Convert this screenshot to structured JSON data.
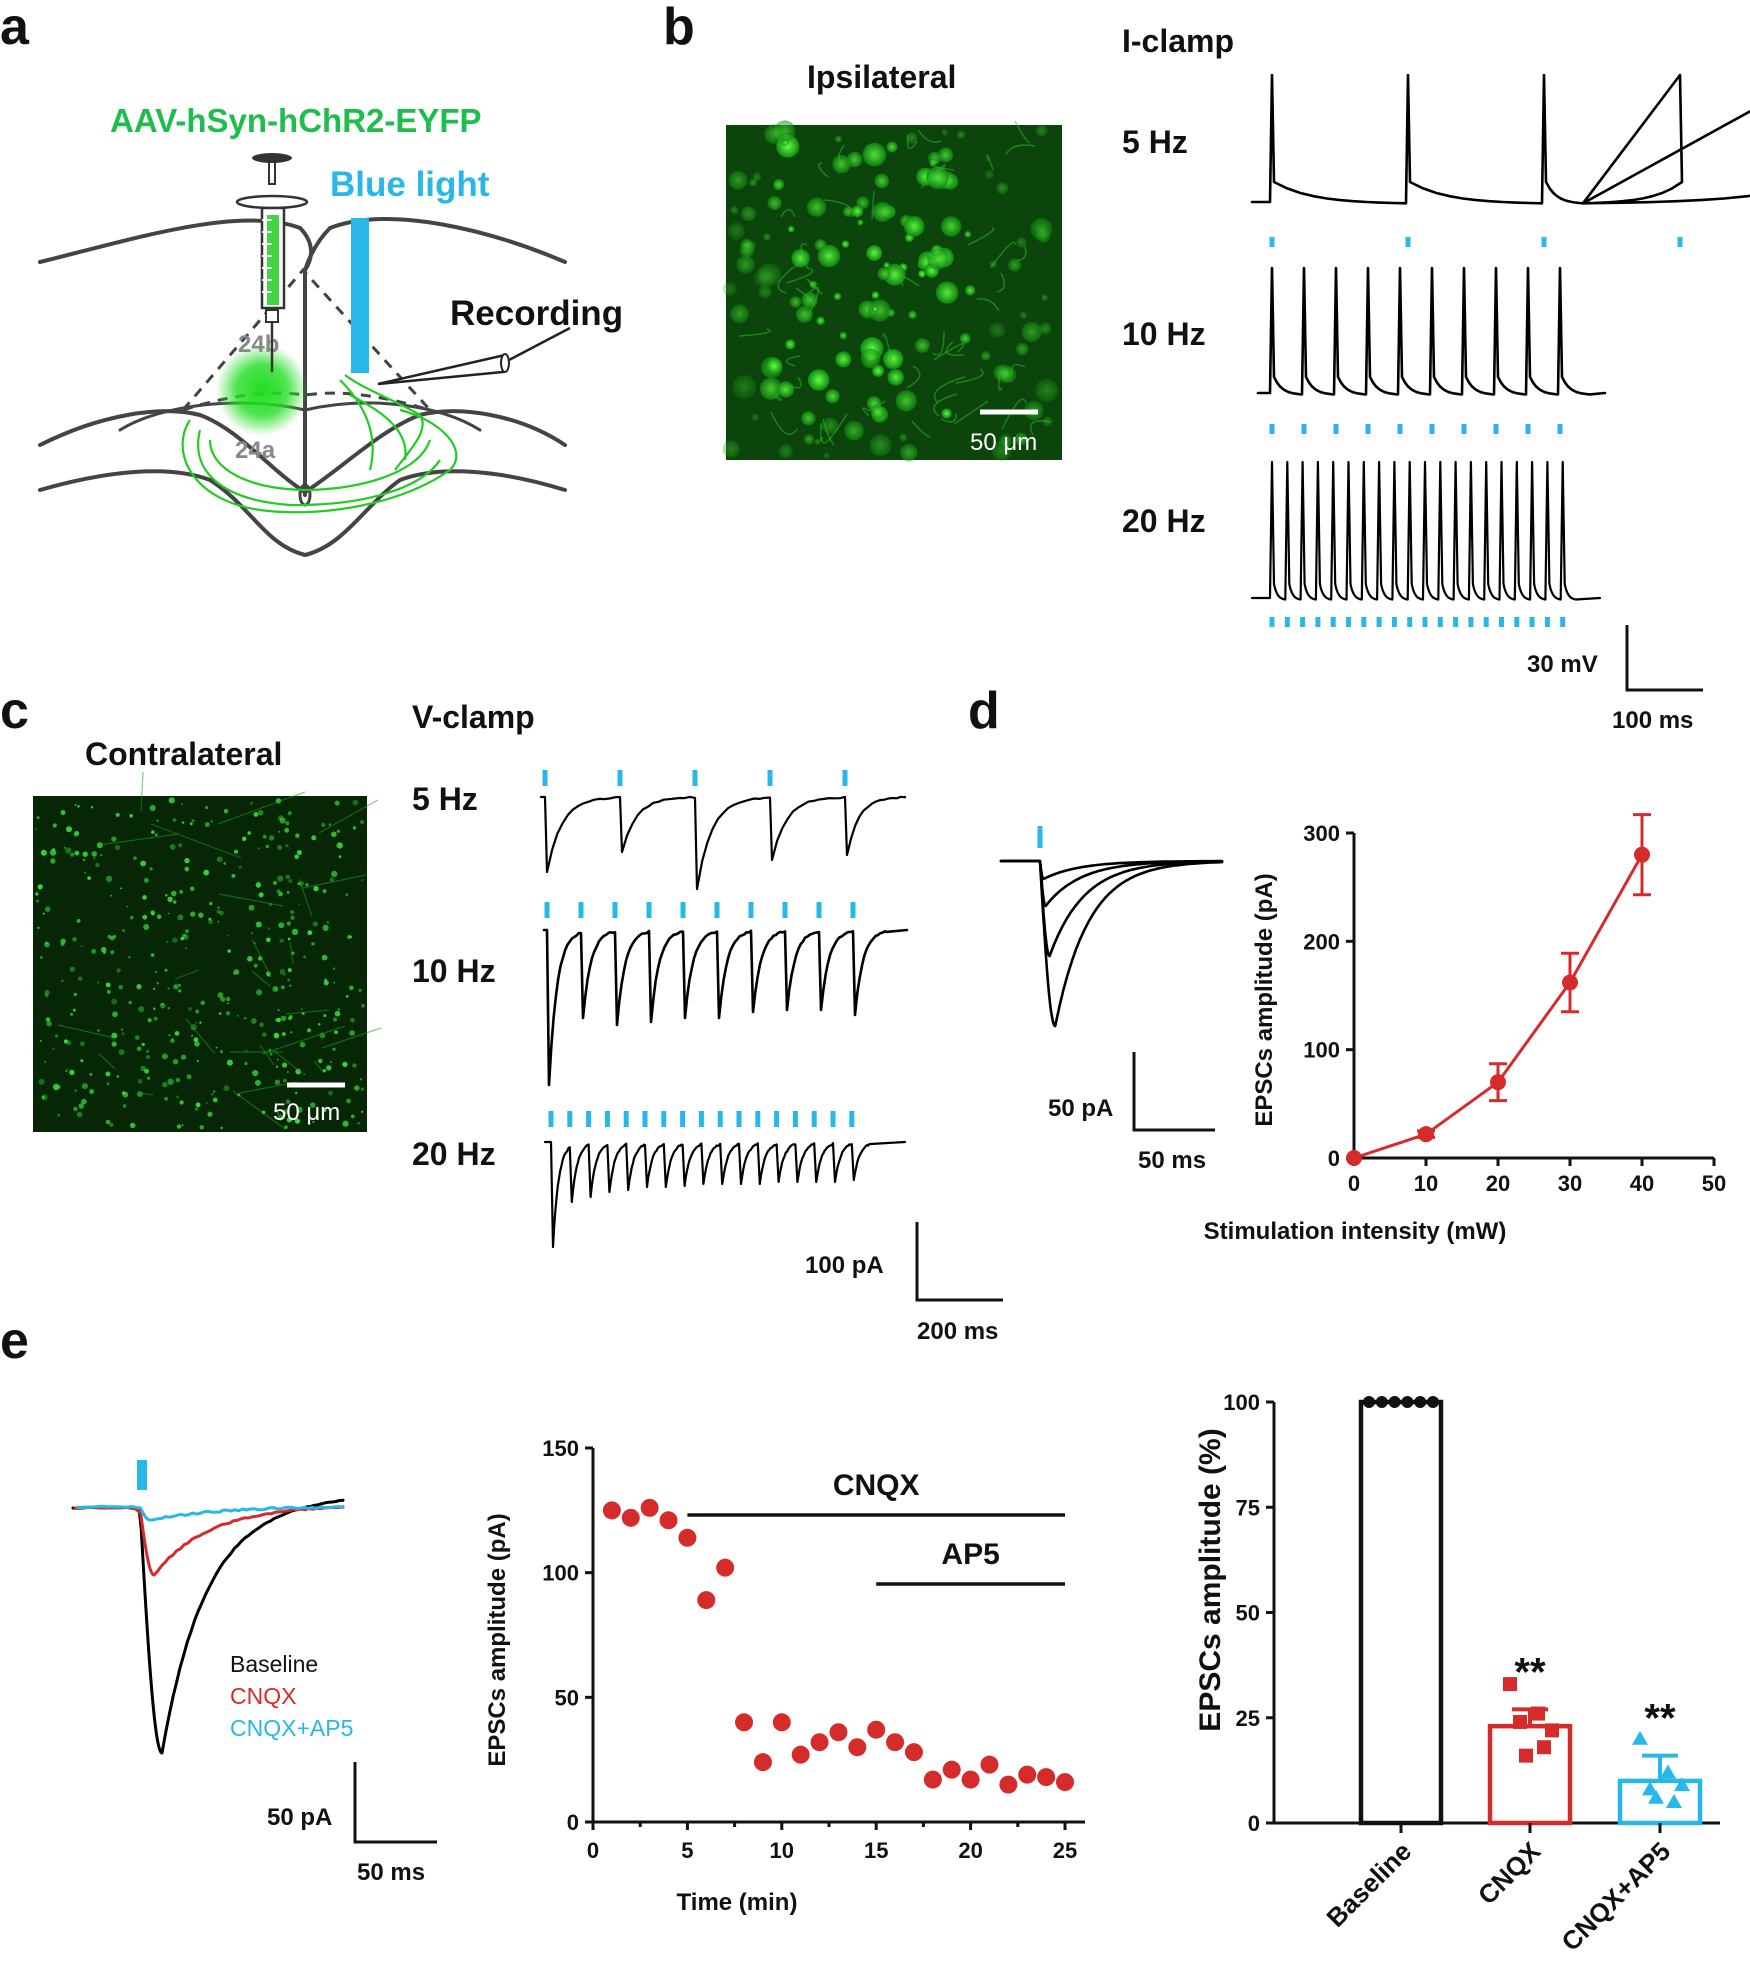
{
  "panels": {
    "a": {
      "letter": "a",
      "virus_label": "AAV-hSyn-hChR2-EYFP",
      "light_label": "Blue light",
      "recording_label": "Recording",
      "region_upper": "24b",
      "region_lower": "24a"
    },
    "b": {
      "letter": "b",
      "image_title": "Ipsilateral",
      "scale_bar": "50 μm",
      "mode": "I-clamp",
      "frequencies": [
        "5 Hz",
        "10 Hz",
        "20 Hz"
      ],
      "scale_v": "30 mV",
      "scale_t": "100 ms"
    },
    "c": {
      "letter": "c",
      "image_title": "Contralateral",
      "scale_bar": "50 μm",
      "mode": "V-clamp",
      "frequencies": [
        "5 Hz",
        "10 Hz",
        "20 Hz"
      ],
      "scale_i": "100 pA",
      "scale_t": "200 ms"
    },
    "d": {
      "letter": "d",
      "scale_i": "50 pA",
      "scale_t": "50 ms"
    },
    "e": {
      "letter": "e",
      "legend": [
        {
          "label": "Baseline",
          "color": "#111111"
        },
        {
          "label": "CNQX",
          "color": "#d62b2b"
        },
        {
          "label": "CNQX+AP5",
          "color": "#29b7e8"
        }
      ],
      "scale_i": "50 pA",
      "scale_t": "50 ms",
      "drug_bars": [
        "CNQX",
        "AP5"
      ],
      "significance": [
        "**",
        "**"
      ]
    }
  },
  "colors": {
    "light": "#29b7e8",
    "red": "#d62b2b",
    "green": "#22cc22"
  },
  "chart_data": [
    {
      "id": "d_chart",
      "type": "line",
      "xlabel": "Stimulation intensity (mW)",
      "ylabel": "EPSCs amplitude (pA)",
      "xlim": [
        0,
        50
      ],
      "ylim": [
        0,
        300
      ],
      "xticks": [
        0,
        10,
        20,
        30,
        40,
        50
      ],
      "yticks": [
        0,
        100,
        200,
        300
      ],
      "x": [
        0,
        10,
        20,
        30,
        40
      ],
      "y": [
        0,
        22,
        70,
        162,
        280
      ],
      "err": [
        0,
        3,
        17,
        27,
        37
      ],
      "color": "#d62b2b"
    },
    {
      "id": "e_time",
      "type": "scatter",
      "xlabel": "Time (min)",
      "ylabel": "EPSCs amplitude (pA)",
      "xlim": [
        0,
        25
      ],
      "ylim": [
        0,
        150
      ],
      "xticks": [
        0,
        5,
        10,
        15,
        20,
        25
      ],
      "yticks": [
        0,
        50,
        100,
        150
      ],
      "x": [
        1,
        2,
        3,
        4,
        5,
        6,
        7,
        8,
        9,
        10,
        11,
        12,
        13,
        14,
        15,
        16,
        17,
        18,
        19,
        20,
        21,
        22,
        23,
        24,
        25
      ],
      "y": [
        125,
        122,
        126,
        121,
        114,
        89,
        102,
        40,
        24,
        40,
        27,
        32,
        36,
        30,
        37,
        32,
        28,
        17,
        21,
        17,
        23,
        15,
        19,
        18,
        16
      ],
      "color": "#d62b2b",
      "annotations": [
        {
          "label": "CNQX",
          "from": 5,
          "to": 25
        },
        {
          "label": "AP5",
          "from": 15,
          "to": 25
        }
      ]
    },
    {
      "id": "e_bar",
      "type": "bar",
      "ylabel": "EPSCs amplitude (%)",
      "ylim": [
        0,
        100
      ],
      "yticks": [
        0,
        25,
        50,
        75,
        100
      ],
      "categories": [
        "Baseline",
        "CNQX",
        "CNQX+AP5"
      ],
      "values": [
        100,
        23,
        10
      ],
      "errors": [
        0,
        4,
        6
      ],
      "colors": [
        "#111111",
        "#d62b2b",
        "#29b7e8"
      ],
      "points": [
        [
          100,
          100,
          100,
          100,
          100,
          100
        ],
        [
          33,
          26,
          24,
          18,
          16,
          22
        ],
        [
          20,
          12,
          8,
          5,
          6,
          9
        ]
      ]
    }
  ]
}
